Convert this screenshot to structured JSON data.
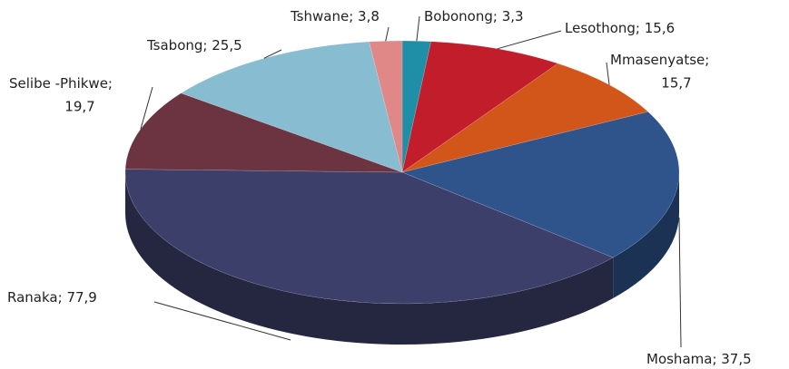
{
  "chart_data": {
    "type": "pie",
    "categories": [
      "Bobonong",
      "Lesothong",
      "Mmasenyatse",
      "Moshama",
      "Ranaka",
      "Selibe -Phikwe",
      "Tsabong",
      "Tshwane"
    ],
    "values": [
      3.3,
      15.6,
      15.7,
      37.5,
      77.9,
      19.7,
      25.5,
      3.8
    ],
    "value_labels": [
      "3,3",
      "15,6",
      "15,7",
      "37,5",
      "77,9",
      "19,7",
      "25,5",
      "3,8"
    ],
    "label_separator": "; ",
    "colors": [
      "#1f8fa8",
      "#c21d2a",
      "#d2561a",
      "#2f548c",
      "#3d3f6b",
      "#6c3341",
      "#88bdd1",
      "#e08888"
    ]
  }
}
